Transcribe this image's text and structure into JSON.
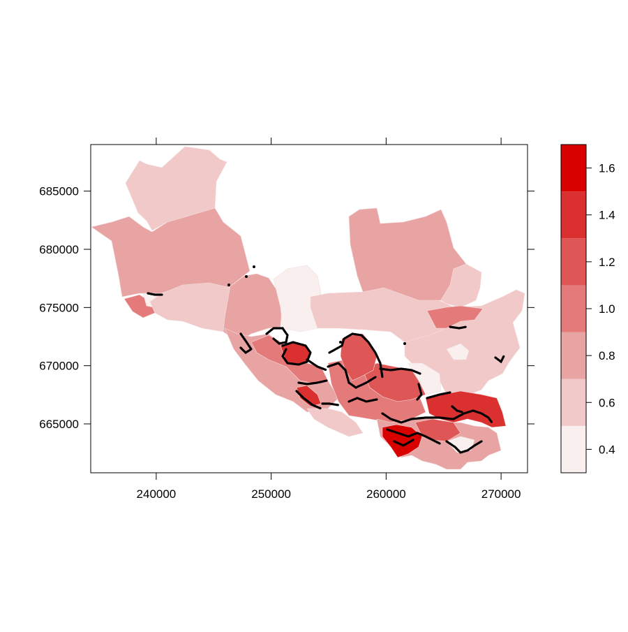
{
  "map": {
    "x_ticks": [
      "240000",
      "250000",
      "260000",
      "270000"
    ],
    "y_ticks": [
      "665000",
      "670000",
      "675000",
      "680000",
      "685000"
    ],
    "x_range": [
      234300,
      272300
    ],
    "y_range": [
      660800,
      689000
    ],
    "fill_classes": [
      {
        "range": [
          0.3,
          0.5
        ],
        "color": "#f9efee"
      },
      {
        "range": [
          0.5,
          0.7
        ],
        "color": "#f1c9c9"
      },
      {
        "range": [
          0.7,
          0.9
        ],
        "color": "#e8a3a3"
      },
      {
        "range": [
          0.9,
          1.1
        ],
        "color": "#e57a7a"
      },
      {
        "range": [
          1.1,
          1.3
        ],
        "color": "#df5656"
      },
      {
        "range": [
          1.3,
          1.5
        ],
        "color": "#da3030"
      },
      {
        "range": [
          1.5,
          1.7
        ],
        "color": "#d90000"
      }
    ]
  },
  "legend": {
    "ticks": [
      "0.4",
      "0.6",
      "0.8",
      "1.0",
      "1.2",
      "1.4",
      "1.6"
    ],
    "tick_values": [
      0.4,
      0.6,
      0.8,
      1.0,
      1.2,
      1.4,
      1.6
    ],
    "range": [
      0.3,
      1.7
    ]
  }
}
